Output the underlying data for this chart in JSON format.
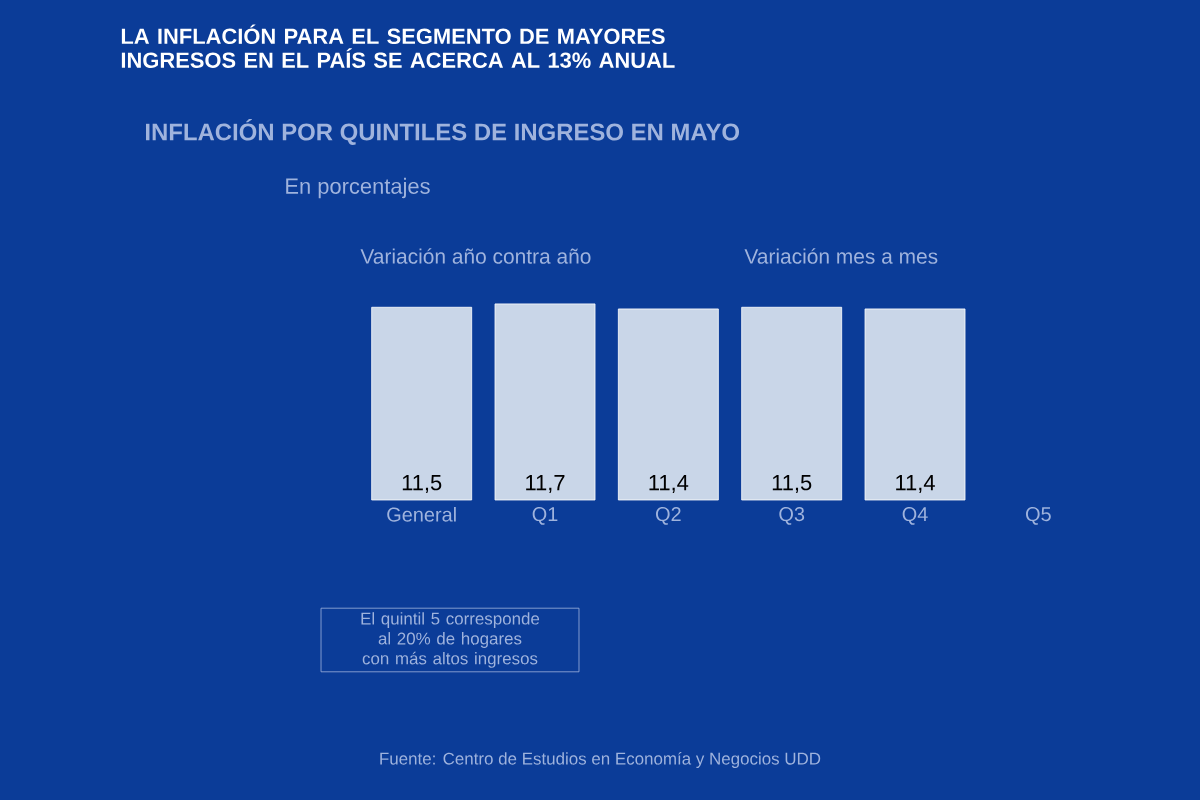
{
  "chart_data": {
    "type": "bar",
    "title": "LA INFLACIÓN PARA EL SEGMENTO DE MAYORES INGRESOS EN EL PAÍS SE ACERCA AL 13% ANUAL",
    "subtitle": "INFLACIÓN POR QUINTILES DE INGRESO EN MAYO",
    "annotations": [
      "En porcentajes",
      "Variación año contra año",
      "Variación mes a mes",
      "El quintil 5 corresponde al 20% de hogares con más altos ingresos",
      "Fuente: Centro de Estudios en Economía y Negocios UDD"
    ],
    "categories": [
      "General",
      "Q1",
      "Q2",
      "Q3",
      "Q4",
      "Q5"
    ],
    "values": [
      11.5,
      11.7,
      11.4,
      11.5,
      11.4,
      null
    ],
    "value_labels": [
      "11,5",
      "11,7",
      "11,4",
      "11,5",
      "11,4",
      null
    ],
    "color": "#c9d6e8"
  }
}
